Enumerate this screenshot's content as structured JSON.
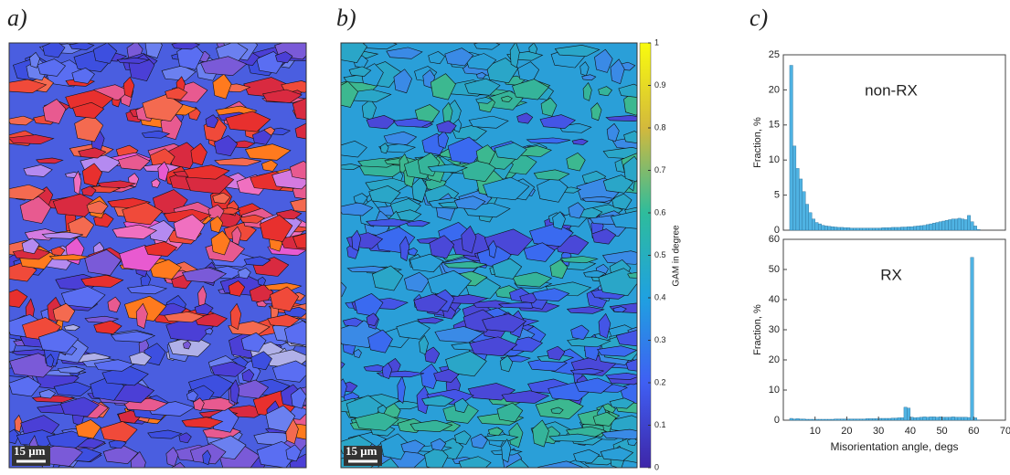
{
  "panel_labels": [
    "a)",
    "b)",
    "c)"
  ],
  "scale_bars": [
    "15 μm",
    "15 μm"
  ],
  "colorbar": {
    "label": "GAM in degree",
    "lim": [
      0,
      1
    ],
    "ticks": [
      0,
      0.1,
      0.2,
      0.3,
      0.4,
      0.5,
      0.6,
      0.7,
      0.8,
      0.9,
      1
    ]
  },
  "chart_data": [
    {
      "type": "histogram",
      "annotation": "non-RX",
      "ylabel": "Fraction, %",
      "color": "#4fb3e3",
      "bins": [
        2,
        3,
        4,
        5,
        6,
        7,
        8,
        9,
        10,
        11,
        12,
        13,
        14,
        15,
        16,
        17,
        18,
        19,
        20,
        21,
        22,
        23,
        24,
        25,
        26,
        27,
        28,
        29,
        30,
        31,
        32,
        33,
        34,
        35,
        36,
        37,
        38,
        39,
        40,
        41,
        42,
        43,
        44,
        45,
        46,
        47,
        48,
        49,
        50,
        51,
        52,
        53,
        54,
        55,
        56,
        57,
        58,
        59,
        60,
        61,
        62
      ],
      "values": [
        23.5,
        12,
        8.8,
        7.3,
        5.5,
        3.7,
        2.5,
        1.6,
        1.1,
        0.9,
        0.7,
        0.6,
        0.55,
        0.5,
        0.45,
        0.4,
        0.4,
        0.35,
        0.35,
        0.3,
        0.3,
        0.3,
        0.3,
        0.3,
        0.3,
        0.3,
        0.3,
        0.3,
        0.3,
        0.35,
        0.35,
        0.35,
        0.4,
        0.4,
        0.4,
        0.45,
        0.45,
        0.5,
        0.5,
        0.55,
        0.6,
        0.65,
        0.7,
        0.8,
        0.9,
        1,
        1.1,
        1.2,
        1.3,
        1.4,
        1.5,
        1.6,
        1.6,
        1.7,
        1.6,
        1.5,
        2.1,
        1.2,
        0.6,
        0.1
      ],
      "xlim": [
        0,
        70
      ],
      "ylim": [
        0,
        25
      ],
      "yticks": [
        0,
        5,
        10,
        15,
        20,
        25
      ]
    },
    {
      "type": "histogram",
      "annotation": "RX",
      "ylabel": "Fraction, %",
      "xlabel": "Misorientation angle, degs",
      "color": "#4fb3e3",
      "bins": [
        2,
        3,
        4,
        5,
        6,
        7,
        8,
        9,
        10,
        11,
        12,
        13,
        14,
        15,
        16,
        17,
        18,
        19,
        20,
        21,
        22,
        23,
        24,
        25,
        26,
        27,
        28,
        29,
        30,
        31,
        32,
        33,
        34,
        35,
        36,
        37,
        38,
        39,
        40,
        41,
        42,
        43,
        44,
        45,
        46,
        47,
        48,
        49,
        50,
        51,
        52,
        53,
        54,
        55,
        56,
        57,
        58,
        59,
        60,
        61,
        62
      ],
      "values": [
        0.6,
        0.4,
        0.5,
        0.4,
        0.4,
        0.3,
        0.3,
        0.3,
        0.3,
        0.3,
        0.3,
        0.3,
        0.3,
        0.3,
        0.4,
        0.4,
        0.4,
        0.4,
        0.4,
        0.4,
        0.4,
        0.4,
        0.4,
        0.4,
        0.5,
        0.5,
        0.5,
        0.5,
        0.6,
        0.6,
        0.6,
        0.6,
        0.7,
        0.7,
        0.8,
        0.8,
        4.3,
        4.0,
        1.0,
        0.8,
        0.9,
        1.0,
        1.1,
        1.0,
        1.1,
        1.1,
        1.0,
        1.1,
        1.0,
        1.0,
        1.0,
        1.1,
        1.0,
        1.0,
        1.0,
        1.0,
        0.9,
        54,
        0.8,
        0.1
      ],
      "xlim": [
        0,
        70
      ],
      "xticks": [
        10,
        20,
        30,
        40,
        50,
        60,
        70
      ],
      "ylim": [
        0,
        60
      ],
      "yticks": [
        0,
        10,
        20,
        30,
        40,
        50,
        60
      ]
    }
  ]
}
